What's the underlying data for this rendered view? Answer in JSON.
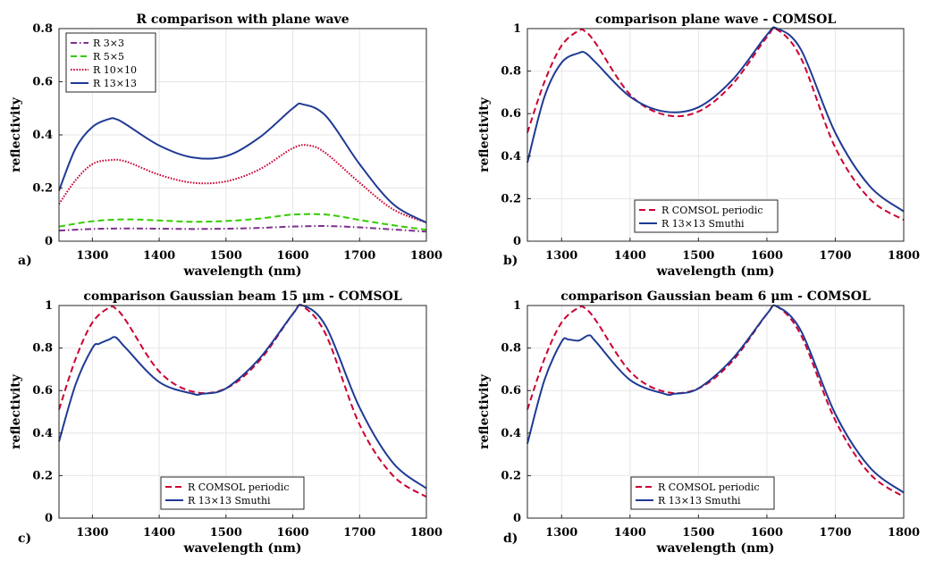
{
  "chart_data": [
    {
      "panel": "a)",
      "type": "line",
      "title": "R comparison with plane wave",
      "xlabel": "wavelength (nm)",
      "ylabel": "reflectivity",
      "xlim": [
        1250,
        1800
      ],
      "ylim": [
        0,
        0.8
      ],
      "xticks": [
        1300,
        1400,
        1500,
        1600,
        1700,
        1800
      ],
      "yticks": [
        0,
        0.2,
        0.4,
        0.6,
        0.8
      ],
      "ytick_labels": [
        "0",
        "0.2",
        "0.4",
        "0.6",
        "0.8"
      ],
      "grid": true,
      "legend_position": "top-left",
      "series": [
        {
          "name": "R 3×3",
          "color": "#7e2f8e",
          "dash": "dashdot",
          "x": [
            1250,
            1300,
            1350,
            1400,
            1450,
            1500,
            1550,
            1600,
            1650,
            1700,
            1750,
            1800
          ],
          "y": [
            0.04,
            0.046,
            0.048,
            0.047,
            0.046,
            0.047,
            0.05,
            0.055,
            0.057,
            0.052,
            0.044,
            0.036
          ]
        },
        {
          "name": "R 5×5",
          "color": "#33cc00",
          "dash": "dashed",
          "x": [
            1250,
            1300,
            1350,
            1400,
            1450,
            1500,
            1550,
            1600,
            1650,
            1700,
            1750,
            1800
          ],
          "y": [
            0.055,
            0.075,
            0.082,
            0.078,
            0.073,
            0.076,
            0.085,
            0.1,
            0.1,
            0.08,
            0.06,
            0.043
          ]
        },
        {
          "name": "R 10×10",
          "color": "#cc0033",
          "dash": "dotted",
          "x": [
            1250,
            1275,
            1300,
            1325,
            1350,
            1400,
            1450,
            1500,
            1550,
            1600,
            1625,
            1650,
            1700,
            1750,
            1800
          ],
          "y": [
            0.14,
            0.23,
            0.29,
            0.305,
            0.3,
            0.25,
            0.22,
            0.225,
            0.27,
            0.35,
            0.36,
            0.33,
            0.22,
            0.12,
            0.07
          ]
        },
        {
          "name": "R 13×13",
          "color": "#1f3a93",
          "dash": "solid",
          "x": [
            1250,
            1275,
            1300,
            1325,
            1335,
            1350,
            1400,
            1450,
            1500,
            1550,
            1600,
            1615,
            1650,
            1700,
            1750,
            1800
          ],
          "y": [
            0.19,
            0.35,
            0.43,
            0.46,
            0.46,
            0.44,
            0.36,
            0.315,
            0.32,
            0.39,
            0.5,
            0.515,
            0.47,
            0.29,
            0.14,
            0.07
          ]
        }
      ]
    },
    {
      "panel": "b)",
      "type": "line",
      "title": "comparison plane wave - COMSOL",
      "xlabel": "wavelength (nm)",
      "ylabel": "reflectivity",
      "xlim": [
        1250,
        1800
      ],
      "ylim": [
        0,
        1
      ],
      "xticks": [
        1300,
        1400,
        1500,
        1600,
        1700,
        1800
      ],
      "yticks": [
        0,
        0.2,
        0.4,
        0.6,
        0.8,
        1
      ],
      "ytick_labels": [
        "0",
        "0.2",
        "0.4",
        "0.6",
        "0.8",
        "1"
      ],
      "grid": true,
      "legend_position": "bottom-center",
      "series": [
        {
          "name": "R COMSOL periodic",
          "color": "#cc0033",
          "dash": "dashed",
          "x": [
            1250,
            1275,
            1300,
            1325,
            1335,
            1350,
            1400,
            1450,
            1500,
            1550,
            1600,
            1615,
            1650,
            1700,
            1750,
            1800
          ],
          "y": [
            0.51,
            0.75,
            0.92,
            0.99,
            0.985,
            0.93,
            0.69,
            0.595,
            0.61,
            0.74,
            0.96,
            0.995,
            0.86,
            0.44,
            0.2,
            0.1
          ]
        },
        {
          "name": "R 13×13 Smuthi",
          "color": "#1f3a93",
          "dash": "solid",
          "x": [
            1250,
            1275,
            1300,
            1325,
            1335,
            1350,
            1400,
            1450,
            1500,
            1550,
            1600,
            1615,
            1650,
            1700,
            1750,
            1800
          ],
          "y": [
            0.37,
            0.68,
            0.84,
            0.885,
            0.885,
            0.84,
            0.68,
            0.61,
            0.63,
            0.76,
            0.97,
            1.0,
            0.9,
            0.51,
            0.26,
            0.14
          ]
        }
      ]
    },
    {
      "panel": "c)",
      "type": "line",
      "title": "comparison Gaussian beam 15 μm - COMSOL",
      "xlabel": "wavelength (nm)",
      "ylabel": "reflectivity",
      "xlim": [
        1250,
        1800
      ],
      "ylim": [
        0,
        1
      ],
      "xticks": [
        1300,
        1400,
        1500,
        1600,
        1700,
        1800
      ],
      "yticks": [
        0,
        0.2,
        0.4,
        0.6,
        0.8,
        1
      ],
      "ytick_labels": [
        "0",
        "0.2",
        "0.4",
        "0.6",
        "0.8",
        "1"
      ],
      "grid": true,
      "legend_position": "bottom-center",
      "series": [
        {
          "name": "R COMSOL periodic",
          "color": "#cc0033",
          "dash": "dashed",
          "x": [
            1250,
            1275,
            1300,
            1325,
            1335,
            1350,
            1400,
            1450,
            1500,
            1550,
            1600,
            1615,
            1650,
            1700,
            1750,
            1800
          ],
          "y": [
            0.51,
            0.75,
            0.92,
            0.99,
            0.985,
            0.93,
            0.69,
            0.595,
            0.61,
            0.74,
            0.96,
            0.995,
            0.86,
            0.44,
            0.2,
            0.1
          ]
        },
        {
          "name": "R 13×13 Smuthi",
          "color": "#1f3a93",
          "dash": "solid",
          "x": [
            1250,
            1275,
            1300,
            1310,
            1325,
            1335,
            1350,
            1400,
            1450,
            1465,
            1500,
            1550,
            1600,
            1615,
            1650,
            1700,
            1750,
            1800
          ],
          "y": [
            0.36,
            0.63,
            0.8,
            0.82,
            0.84,
            0.85,
            0.8,
            0.64,
            0.585,
            0.585,
            0.61,
            0.75,
            0.96,
            1.0,
            0.9,
            0.52,
            0.26,
            0.14
          ]
        }
      ]
    },
    {
      "panel": "d)",
      "type": "line",
      "title": "comparison Gaussian beam 6 μm - COMSOL",
      "xlabel": "wavelength (nm)",
      "ylabel": "reflectivity",
      "xlim": [
        1250,
        1800
      ],
      "ylim": [
        0,
        1
      ],
      "xticks": [
        1300,
        1400,
        1500,
        1600,
        1700,
        1800
      ],
      "yticks": [
        0,
        0.2,
        0.4,
        0.6,
        0.8,
        1
      ],
      "ytick_labels": [
        "0",
        "0.2",
        "0.4",
        "0.6",
        "0.8",
        "1"
      ],
      "grid": true,
      "legend_position": "bottom-right",
      "series": [
        {
          "name": "R COMSOL periodic",
          "color": "#cc0033",
          "dash": "dashed",
          "x": [
            1250,
            1275,
            1300,
            1325,
            1335,
            1350,
            1400,
            1450,
            1500,
            1550,
            1600,
            1615,
            1650,
            1700,
            1750,
            1800
          ],
          "y": [
            0.51,
            0.75,
            0.92,
            0.99,
            0.985,
            0.93,
            0.69,
            0.595,
            0.61,
            0.74,
            0.96,
            0.995,
            0.86,
            0.46,
            0.21,
            0.1
          ]
        },
        {
          "name": "R 13×13 Smuthi",
          "color": "#1f3a93",
          "dash": "solid",
          "x": [
            1250,
            1275,
            1300,
            1310,
            1325,
            1340,
            1350,
            1400,
            1450,
            1465,
            1500,
            1550,
            1600,
            1615,
            1650,
            1700,
            1750,
            1800
          ],
          "y": [
            0.35,
            0.65,
            0.83,
            0.84,
            0.835,
            0.86,
            0.83,
            0.65,
            0.585,
            0.585,
            0.61,
            0.75,
            0.96,
            0.995,
            0.88,
            0.49,
            0.24,
            0.12
          ]
        }
      ]
    }
  ]
}
